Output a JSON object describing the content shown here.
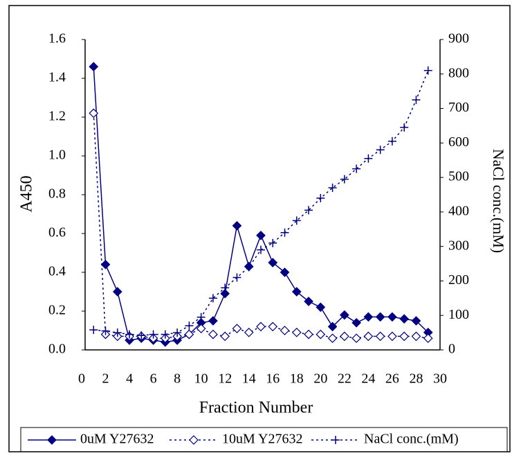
{
  "chart_data": {
    "type": "line",
    "x_label": "Fraction Number",
    "y_label": "A450",
    "y2_label": "NaCl conc.(mM)",
    "x": [
      1,
      2,
      3,
      4,
      5,
      6,
      7,
      8,
      9,
      10,
      11,
      12,
      13,
      14,
      15,
      16,
      17,
      18,
      19,
      20,
      21,
      22,
      23,
      24,
      25,
      26,
      27,
      28,
      29
    ],
    "xlim": [
      0,
      30
    ],
    "xticks": [
      0,
      2,
      4,
      6,
      8,
      10,
      12,
      14,
      16,
      18,
      20,
      22,
      24,
      26,
      28,
      30
    ],
    "ylim": [
      0,
      1.6
    ],
    "yticks": [
      {
        "value": 0,
        "label": "0.0"
      },
      {
        "value": 0.2,
        "label": "0.2"
      },
      {
        "value": 0.4,
        "label": "0.4"
      },
      {
        "value": 0.6,
        "label": "0.6"
      },
      {
        "value": 0.8,
        "label": "0.8"
      },
      {
        "value": 1,
        "label": "1.0"
      },
      {
        "value": 1.2,
        "label": "1.2"
      },
      {
        "value": 1.4,
        "label": "1.4"
      },
      {
        "value": 1.6,
        "label": "1.6"
      }
    ],
    "y2lim": [
      0,
      900
    ],
    "y2ticks": [
      0,
      100,
      200,
      300,
      400,
      500,
      600,
      700,
      800,
      900
    ],
    "legend": "bottom",
    "series": [
      {
        "name": "0uM Y27632",
        "color": "#000080",
        "line_style": "solid",
        "marker": "filled-diamond",
        "values": [
          1.46,
          0.44,
          0.3,
          0.05,
          0.06,
          0.05,
          0.04,
          0.05,
          0.08,
          0.14,
          0.15,
          0.29,
          0.64,
          0.43,
          0.59,
          0.45,
          0.4,
          0.3,
          0.25,
          0.22,
          0.12,
          0.18,
          0.14,
          0.17,
          0.17,
          0.17,
          0.16,
          0.15,
          0.09
        ]
      },
      {
        "name": "10uM Y27632",
        "color": "#000080",
        "line_style": "dotted",
        "marker": "hollow-diamond",
        "values": [
          1.22,
          0.08,
          0.07,
          0.07,
          0.07,
          0.06,
          0.06,
          0.07,
          0.08,
          0.11,
          0.08,
          0.07,
          0.11,
          0.09,
          0.12,
          0.12,
          0.1,
          0.09,
          0.08,
          0.08,
          0.06,
          0.07,
          0.06,
          0.07,
          0.07,
          0.07,
          0.07,
          0.07,
          0.06
        ]
      },
      {
        "name": "NaCl conc.(mM)",
        "color": "#000080",
        "line_style": "dotted",
        "marker": "plus",
        "axis": "y2",
        "values": [
          58,
          55,
          50,
          45,
          42,
          45,
          45,
          50,
          70,
          95,
          150,
          180,
          210,
          240,
          290,
          310,
          340,
          375,
          405,
          440,
          470,
          495,
          525,
          555,
          580,
          605,
          645,
          725,
          810
        ]
      }
    ]
  }
}
